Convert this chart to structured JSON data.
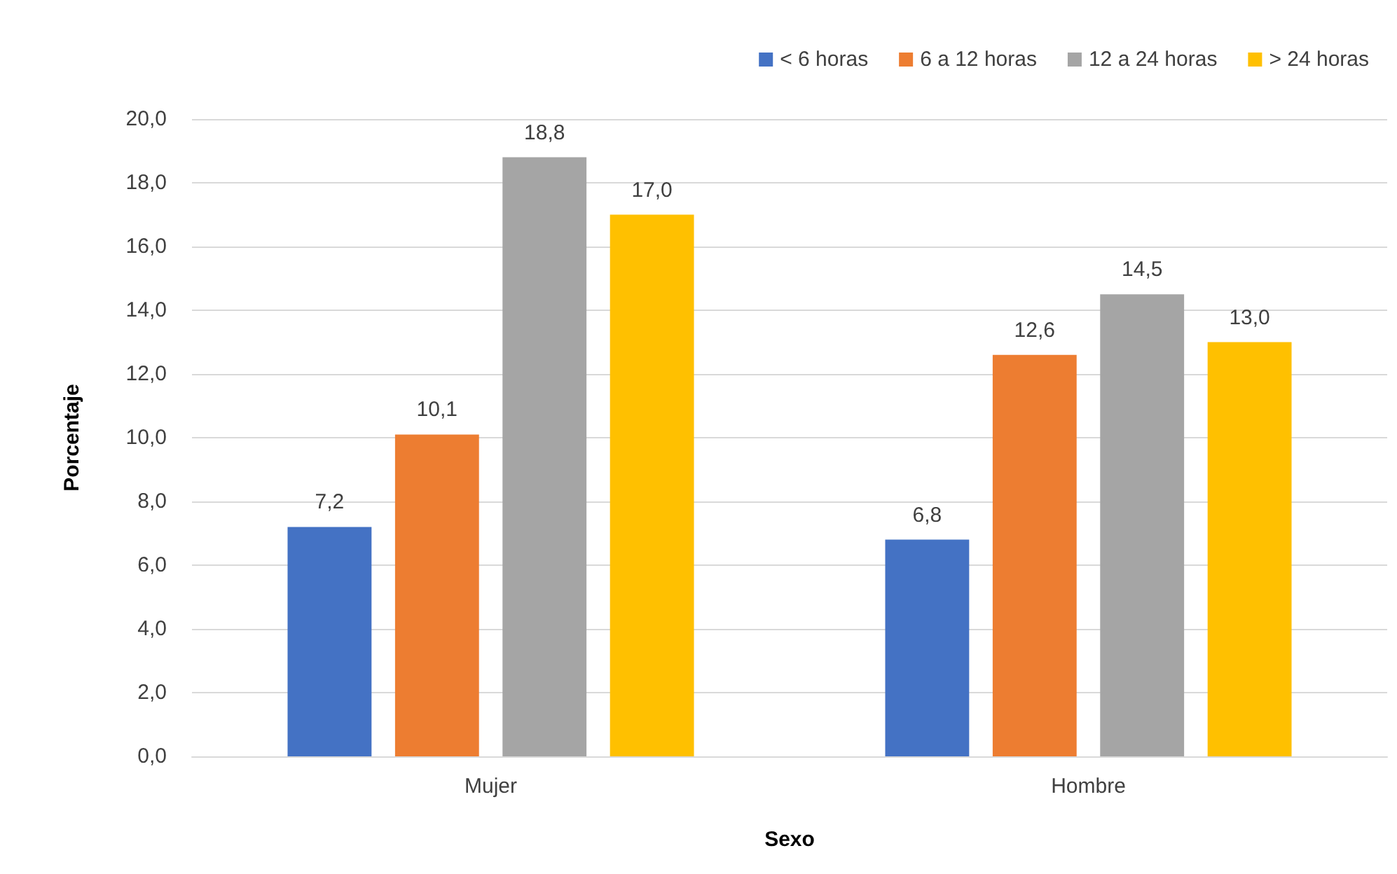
{
  "chart_data": {
    "type": "bar",
    "xlabel": "Sexo",
    "ylabel": "Porcentaje",
    "categories": [
      "Mujer",
      "Hombre"
    ],
    "series": [
      {
        "name": "< 6 horas",
        "color": "#4472c4",
        "values": [
          7.2,
          6.8
        ],
        "value_labels": [
          "7,2",
          "6,8"
        ]
      },
      {
        "name": "6 a 12 horas",
        "color": "#ed7d31",
        "values": [
          10.1,
          12.6
        ],
        "value_labels": [
          "10,1",
          "12,6"
        ]
      },
      {
        "name": "12 a 24 horas",
        "color": "#a5a5a5",
        "values": [
          18.8,
          14.5
        ],
        "value_labels": [
          "18,8",
          "14,5"
        ]
      },
      {
        "name": "> 24 horas",
        "color": "#ffc000",
        "values": [
          17.0,
          13.0
        ],
        "value_labels": [
          "17,0",
          "13,0"
        ]
      }
    ],
    "ylim": [
      0,
      20
    ],
    "yticks": [
      {
        "value": 0,
        "label": "0,0"
      },
      {
        "value": 2,
        "label": "2,0"
      },
      {
        "value": 4,
        "label": "4,0"
      },
      {
        "value": 6,
        "label": "6,0"
      },
      {
        "value": 8,
        "label": "8,0"
      },
      {
        "value": 10,
        "label": "10,0"
      },
      {
        "value": 12,
        "label": "12,0"
      },
      {
        "value": 14,
        "label": "14,0"
      },
      {
        "value": 16,
        "label": "16,0"
      },
      {
        "value": 18,
        "label": "18,0"
      },
      {
        "value": 20,
        "label": "20,0"
      }
    ],
    "grid": "y",
    "legend": "top right"
  }
}
